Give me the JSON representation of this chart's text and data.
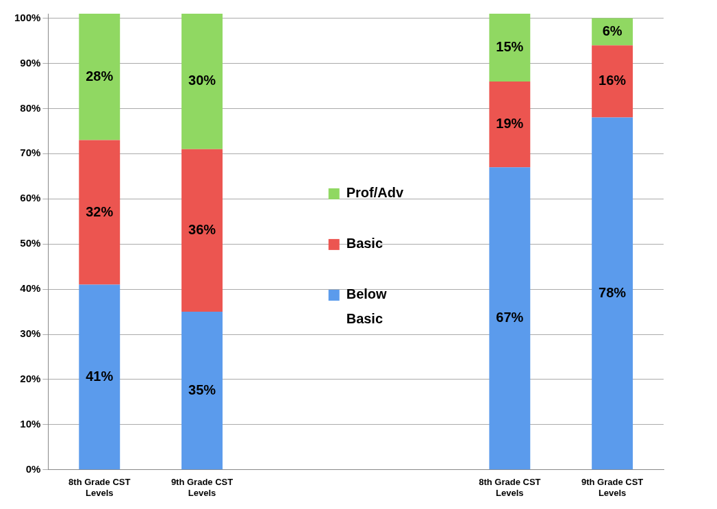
{
  "chart_data": {
    "type": "bar",
    "stacked": true,
    "categories": [
      "8th Grade CST Levels",
      "9th Grade CST Levels",
      null,
      null,
      "8th Grade CST Levels",
      "9th Grade CST Levels"
    ],
    "series": [
      {
        "name": "Below Basic",
        "color": "#5b9bec",
        "values": [
          41,
          35,
          null,
          null,
          67,
          78
        ],
        "value_labels": [
          "41%",
          "35%",
          null,
          null,
          "67%",
          "78%"
        ]
      },
      {
        "name": "Basic",
        "color": "#ec5550",
        "values": [
          32,
          36,
          null,
          null,
          19,
          16
        ],
        "value_labels": [
          "32%",
          "36%",
          null,
          null,
          "19%",
          "16%"
        ]
      },
      {
        "name": "Prof/Adv",
        "color": "#90d862",
        "values": [
          28,
          30,
          null,
          null,
          15,
          6
        ],
        "value_labels": [
          "28%",
          "30%",
          null,
          null,
          "15%",
          "6%"
        ]
      }
    ],
    "ylim": [
      0,
      101
    ],
    "yticks": [
      {
        "value": 0,
        "label": "0%"
      },
      {
        "value": 10,
        "label": "10%"
      },
      {
        "value": 20,
        "label": "20%"
      },
      {
        "value": 30,
        "label": "30%"
      },
      {
        "value": 40,
        "label": "40%"
      },
      {
        "value": 50,
        "label": "50%"
      },
      {
        "value": 60,
        "label": "60%"
      },
      {
        "value": 70,
        "label": "70%"
      },
      {
        "value": 80,
        "label": "80%"
      },
      {
        "value": 90,
        "label": "90%"
      },
      {
        "value": 100,
        "label": "100%"
      }
    ],
    "grid": "y",
    "legend": "center"
  }
}
